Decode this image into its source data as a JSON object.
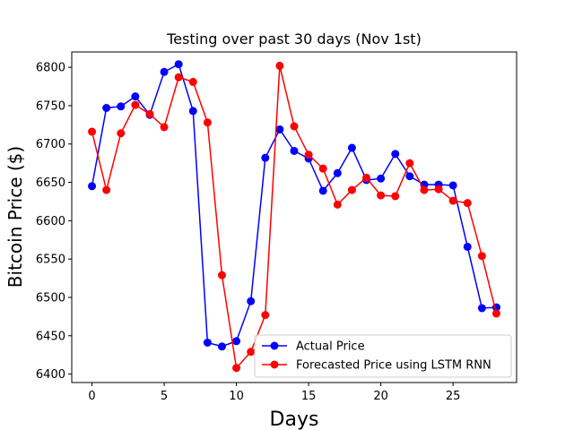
{
  "chart_data": {
    "type": "line",
    "title": "Testing over past 30 days (Nov 1st)",
    "xlabel": "Days",
    "ylabel": "Bitcoin Price ($)",
    "xlim": [
      -1.4,
      29.4
    ],
    "ylim": [
      6389,
      6820
    ],
    "xticks": [
      0,
      5,
      10,
      15,
      20,
      25
    ],
    "yticks": [
      6400,
      6450,
      6500,
      6550,
      6600,
      6650,
      6700,
      6750,
      6800
    ],
    "grid": false,
    "legend_position": "lower-right",
    "x": [
      0,
      1,
      2,
      3,
      4,
      5,
      6,
      7,
      8,
      9,
      10,
      11,
      12,
      13,
      14,
      15,
      16,
      17,
      18,
      19,
      20,
      21,
      22,
      23,
      24,
      25,
      26,
      27,
      28
    ],
    "series": [
      {
        "name": "Actual Price",
        "color": "#0000ff",
        "values": [
          6645,
          6747,
          6749,
          6762,
          6738,
          6794,
          6804,
          6743,
          6441,
          6436,
          6443,
          6495,
          6682,
          6719,
          6691,
          6681,
          6639,
          6662,
          6695,
          6653,
          6655,
          6687,
          6658,
          6647,
          6647,
          6646,
          6566,
          6486,
          6487
        ]
      },
      {
        "name": "Forecasted Price using LSTM RNN",
        "color": "#ff0000",
        "values": [
          6716,
          6640,
          6714,
          6751,
          6739,
          6722,
          6787,
          6781,
          6728,
          6529,
          6408,
          6429,
          6477,
          6802,
          6723,
          6686,
          6668,
          6621,
          6640,
          6656,
          6633,
          6632,
          6675,
          6640,
          6641,
          6626,
          6623,
          6554,
          6479
        ]
      }
    ]
  }
}
